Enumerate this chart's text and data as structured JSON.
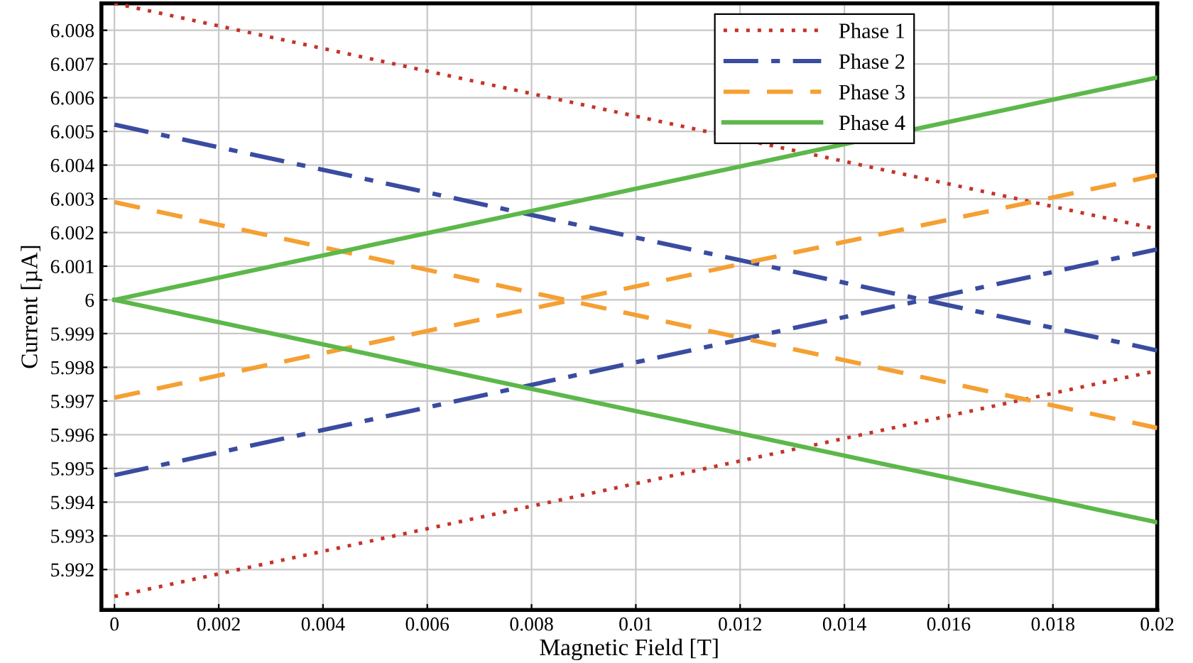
{
  "chart_data": {
    "type": "line",
    "xlabel": "Magnetic Field [T]",
    "ylabel": "Current [µA]",
    "xlim": [
      -0.00025,
      0.02
    ],
    "xticks": [
      0,
      0.002,
      0.004,
      0.006,
      0.008,
      0.01,
      0.012,
      0.014,
      0.016,
      0.018,
      0.02
    ],
    "ylim": [
      5.9908,
      6.0088
    ],
    "yticks": [
      5.992,
      5.993,
      5.994,
      5.995,
      5.996,
      5.997,
      5.998,
      5.999,
      6,
      6.001,
      6.002,
      6.003,
      6.004,
      6.005,
      6.006,
      6.007,
      6.008
    ],
    "grid": true,
    "legend": "top right",
    "marker": "none",
    "x": [
      0,
      0.02
    ],
    "series": [
      {
        "name": "Phase 1",
        "color": "#c4342a",
        "line_style": "dotted",
        "values": [
          6.0088,
          6.0021
        ]
      },
      {
        "color": "#c4342a",
        "line_style": "dotted",
        "values": [
          5.9912,
          5.9979
        ]
      },
      {
        "name": "Phase 2",
        "color": "#3a4ca0",
        "line_style": "dashdot",
        "values": [
          6.0052,
          5.9985
        ]
      },
      {
        "color": "#3a4ca0",
        "line_style": "dashdot",
        "values": [
          5.9948,
          6.0015
        ]
      },
      {
        "name": "Phase 3",
        "color": "#f5a033",
        "line_style": "dashed",
        "values": [
          6.0029,
          5.9962
        ]
      },
      {
        "color": "#f5a033",
        "line_style": "dashed",
        "values": [
          5.9971,
          6.0037
        ]
      },
      {
        "name": "Phase 4",
        "color": "#5cb84a",
        "line_style": "solid",
        "values": [
          6.0,
          6.0066
        ]
      },
      {
        "color": "#5cb84a",
        "line_style": "solid",
        "values": [
          6.0,
          5.9934
        ]
      }
    ]
  }
}
